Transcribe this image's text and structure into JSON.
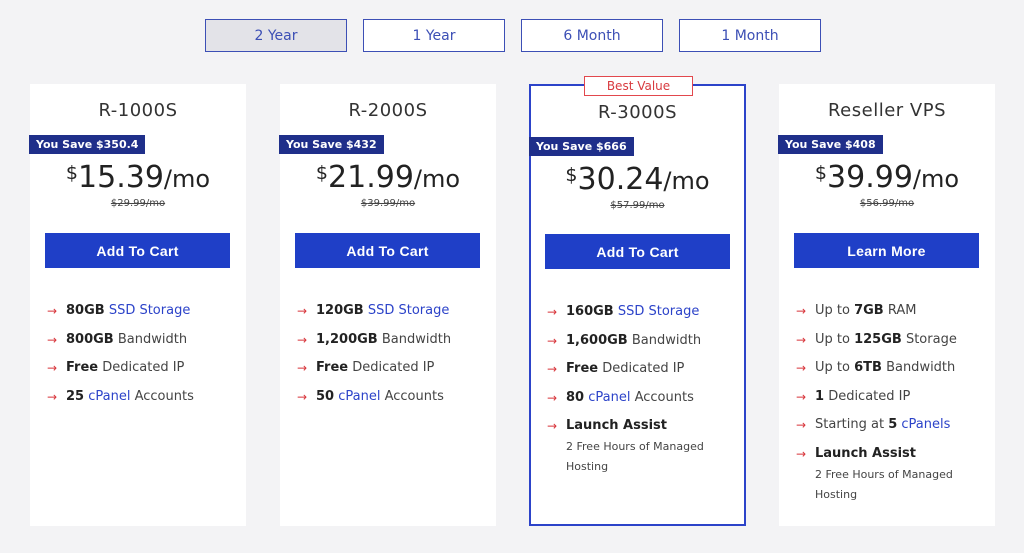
{
  "terms": [
    {
      "label": "2 Year",
      "active": true
    },
    {
      "label": "1 Year",
      "active": false
    },
    {
      "label": "6 Month",
      "active": false
    },
    {
      "label": "1 Month",
      "active": false
    }
  ],
  "plans": [
    {
      "name": "R-1000S",
      "save": "You Save $350.4",
      "currency": "$",
      "price": "15.39",
      "per": "/mo",
      "old_price": "29.99/mo",
      "cta": "Add To Cart",
      "features": [
        {
          "strong": "80GB",
          "text": "",
          "link": "SSD Storage",
          "after": ""
        },
        {
          "strong": "800GB",
          "text": "Bandwidth",
          "link": "",
          "after": ""
        },
        {
          "strong": "Free",
          "text": "Dedicated IP",
          "link": "",
          "after": ""
        },
        {
          "strong": "25",
          "text": "",
          "link": "cPanel",
          "after": "Accounts"
        }
      ]
    },
    {
      "name": "R-2000S",
      "save": "You Save $432",
      "currency": "$",
      "price": "21.99",
      "per": "/mo",
      "old_price": "39.99/mo",
      "cta": "Add To Cart",
      "features": [
        {
          "strong": "120GB",
          "text": "",
          "link": "SSD Storage",
          "after": ""
        },
        {
          "strong": "1,200GB",
          "text": "Bandwidth",
          "link": "",
          "after": ""
        },
        {
          "strong": "Free",
          "text": "Dedicated IP",
          "link": "",
          "after": ""
        },
        {
          "strong": "50",
          "text": "",
          "link": "cPanel",
          "after": "Accounts"
        }
      ]
    },
    {
      "name": "R-3000S",
      "badge": "Best Value",
      "save": "You Save $666",
      "currency": "$",
      "price": "30.24",
      "per": "/mo",
      "old_price": "57.99/mo",
      "cta": "Add To Cart",
      "features": [
        {
          "strong": "160GB",
          "text": "",
          "link": "SSD Storage",
          "after": ""
        },
        {
          "strong": "1,600GB",
          "text": "Bandwidth",
          "link": "",
          "after": ""
        },
        {
          "strong": "Free",
          "text": "Dedicated IP",
          "link": "",
          "after": ""
        },
        {
          "strong": "80",
          "text": "",
          "link": "cPanel",
          "after": "Accounts"
        },
        {
          "strong": "Launch Assist",
          "text": "",
          "link": "",
          "after": "",
          "sub": "2 Free Hours of Managed Hosting"
        }
      ]
    },
    {
      "name": "Reseller VPS",
      "save": "You Save $408",
      "currency": "$",
      "price": "39.99",
      "per": "/mo",
      "old_price": "56.99/mo",
      "cta": "Learn More",
      "features": [
        {
          "pre": "Up to",
          "strong": "7GB",
          "text": "RAM",
          "link": "",
          "after": ""
        },
        {
          "pre": "Up to",
          "strong": "125GB",
          "text": "Storage",
          "link": "",
          "after": ""
        },
        {
          "pre": "Up to",
          "strong": "6TB",
          "text": "Bandwidth",
          "link": "",
          "after": ""
        },
        {
          "strong": "1",
          "text": "Dedicated IP",
          "link": "",
          "after": ""
        },
        {
          "pre": "Starting at",
          "strong": "5",
          "text": "",
          "link": "cPanel",
          "after": "s"
        },
        {
          "strong": "Launch Assist",
          "text": "",
          "link": "",
          "after": "",
          "sub": "2 Free Hours of Managed Hosting"
        }
      ]
    }
  ],
  "icons": {
    "feature_bullet": "arrow-right-icon"
  },
  "colors": {
    "accent": "#1f3fc7",
    "save_tag": "#1f2f8a",
    "bullet": "#d8343a",
    "best_value": "#d83a3f"
  }
}
